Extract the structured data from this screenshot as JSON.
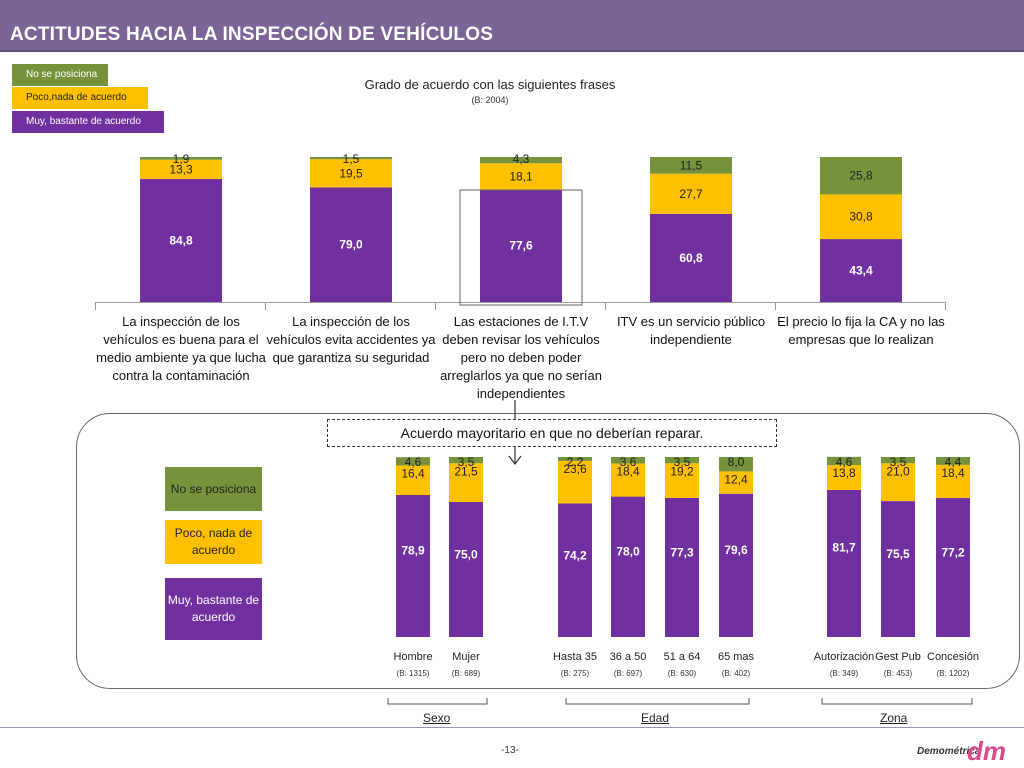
{
  "page": {
    "title": "ACTITUDES HACIA LA INSPECCIÓN DE VEHÍCULOS",
    "page_number": "-13-",
    "logo_text": "Demométrica",
    "logo_mark": "dm"
  },
  "colors": {
    "header": "#7a6596",
    "green": "#76933c",
    "yellow": "#ffc000",
    "purple": "#7030a0"
  },
  "legend_top": {
    "items": [
      {
        "label": "No se posiciona",
        "color": "#76933c"
      },
      {
        "label": "Poco,nada de acuerdo",
        "color": "#ffc000"
      },
      {
        "label": "Muy, bastante de acuerdo",
        "color": "#7030a0"
      }
    ]
  },
  "callout": {
    "text": "Acuerdo mayoritario en que no deberían reparar."
  },
  "legend_bottom": {
    "items": [
      {
        "label": "No se posiciona",
        "color": "#76933c"
      },
      {
        "label": "Poco, nada de acuerdo",
        "color": "#ffc000"
      },
      {
        "label": "Muy, bastante de acuerdo",
        "color": "#7030a0"
      }
    ]
  },
  "chart_data": [
    {
      "type": "bar",
      "stacked": true,
      "title": "Grado de acuerdo con las siguientes frases",
      "subtitle": "(B: 2004)",
      "categories": [
        "La inspección de los vehículos es buena para el medio ambiente ya que lucha contra la contaminación",
        "La inspección de los vehículos evita accidentes ya que garantiza su seguridad",
        "Las estaciones de I.T.V deben revisar los vehículos pero no deben poder arreglarlos ya que no serían independientes",
        "ITV es un servicio público independiente",
        "El precio lo fija la CA y no las empresas que lo realizan"
      ],
      "category_lines": [
        [
          "La inspección de los",
          "vehículos es buena para el",
          "medio ambiente ya que lucha",
          "contra la contaminación"
        ],
        [
          "La inspección de los",
          "vehículos evita accidentes ya",
          "que garantiza su seguridad"
        ],
        [
          "Las estaciones de I.T.V",
          "deben revisar los vehículos",
          "pero no deben poder",
          "arreglarlos ya que no serían",
          "independientes"
        ],
        [
          "ITV es un servicio público",
          "independiente"
        ],
        [
          "El precio lo fija la CA y no las",
          "empresas que lo realizan"
        ]
      ],
      "series": [
        {
          "name": "Muy, bastante de acuerdo",
          "values": [
            84.8,
            79.0,
            77.6,
            60.8,
            43.4
          ],
          "labels": [
            "84,8",
            "79,0",
            "77,6",
            "60,8",
            "43,4"
          ]
        },
        {
          "name": "Poco,nada de acuerdo",
          "values": [
            13.3,
            19.5,
            18.1,
            27.7,
            30.8
          ],
          "labels": [
            "13,3",
            "19,5",
            "18,1",
            "27,7",
            "30,8"
          ]
        },
        {
          "name": "No se posiciona",
          "values": [
            1.9,
            1.5,
            4.3,
            11.5,
            25.8
          ],
          "labels": [
            "1,9",
            "1,5",
            "4,3",
            "11,5",
            "25,8"
          ]
        }
      ],
      "ylim": [
        0,
        100
      ],
      "highlighted_category": 2
    },
    {
      "type": "bar",
      "stacked": true,
      "categories": [
        "Hombre",
        "Mujer",
        "Hasta 35",
        "36 a 50",
        "51 a 64",
        "65 mas",
        "Autorización",
        "Gest Pub",
        "Concesión"
      ],
      "bases": [
        "(B: 1315)",
        "(B: 689)",
        "(B: 275)",
        "(B: 697)",
        "(B: 630)",
        "(B: 402)",
        "(B: 349)",
        "(B: 453)",
        "(B: 1202)"
      ],
      "groups": [
        {
          "label": "Sexo",
          "from": 0,
          "to": 1
        },
        {
          "label": "Edad",
          "from": 2,
          "to": 5
        },
        {
          "label": "Zona",
          "from": 6,
          "to": 8
        }
      ],
      "series": [
        {
          "name": "Muy, bastante de acuerdo",
          "values": [
            78.9,
            75.0,
            74.2,
            78.0,
            77.3,
            79.6,
            81.7,
            75.5,
            77.2
          ],
          "labels": [
            "78,9",
            "75,0",
            "74,2",
            "78,0",
            "77,3",
            "79,6",
            "81,7",
            "75,5",
            "77,2"
          ]
        },
        {
          "name": "Poco, nada de acuerdo",
          "values": [
            16.4,
            21.5,
            23.6,
            18.4,
            19.2,
            12.4,
            13.8,
            21.0,
            18.4
          ],
          "labels": [
            "16,4",
            "21,5",
            "23,6",
            "18,4",
            "19,2",
            "12,4",
            "13,8",
            "21,0",
            "18,4"
          ]
        },
        {
          "name": "No se posiciona",
          "values": [
            4.6,
            3.5,
            2.2,
            3.6,
            3.5,
            8.0,
            4.6,
            3.5,
            4.4
          ],
          "labels": [
            "4,6",
            "3,5",
            "2,2",
            "3,6",
            "3,5",
            "8,0",
            "4,6",
            "3,5",
            "4,4"
          ]
        }
      ],
      "ylim": [
        0,
        100
      ]
    }
  ]
}
